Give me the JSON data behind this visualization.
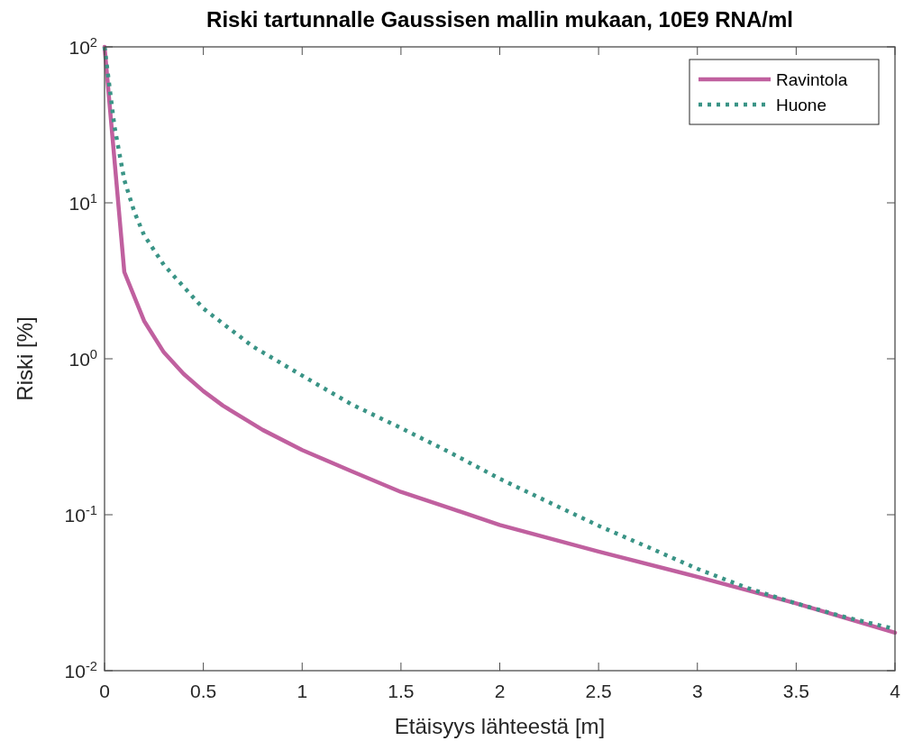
{
  "chart_data": {
    "type": "line",
    "title": "Riski tartunnalle Gaussisen mallin mukaan, 10E9 RNA/ml",
    "xlabel": "Etäisyys lähteestä [m]",
    "ylabel": "Riski [%]",
    "log": "y",
    "grid": false,
    "legend": "top right",
    "xlim": [
      0,
      4
    ],
    "xticks": [
      0,
      0.5,
      1,
      1.5,
      2,
      2.5,
      3,
      3.5,
      4
    ],
    "ylim": [
      0.01,
      100
    ],
    "yticks": [
      {
        "value": 0.01,
        "label": "10$^{-2}$"
      },
      {
        "value": 0.1,
        "label": "10$^{-1}$"
      },
      {
        "value": 1,
        "label": "10$^{0}$"
      },
      {
        "value": 10,
        "label": "10$^{1}$"
      },
      {
        "value": 100,
        "label": "10$^{2}$"
      }
    ],
    "series": [
      {
        "name": "Ravintola",
        "color": "#c0609f",
        "line_style": "solid",
        "x": [
          0,
          0.1,
          0.2,
          0.3,
          0.4,
          0.5,
          0.6,
          0.8,
          1,
          1.25,
          1.5,
          1.75,
          2,
          2.5,
          3,
          3.5,
          4
        ],
        "values": [
          100,
          3.6,
          1.75,
          1.1,
          0.8,
          0.62,
          0.5,
          0.35,
          0.26,
          0.19,
          0.14,
          0.11,
          0.086,
          0.058,
          0.04,
          0.027,
          0.0175
        ]
      },
      {
        "name": "Huone",
        "color": "#3a9486",
        "line_style": "dotted",
        "x": [
          0,
          0.05,
          0.1,
          0.15,
          0.2,
          0.3,
          0.5,
          0.75,
          1,
          1.25,
          1.5,
          1.75,
          2,
          2.25,
          2.5,
          2.75,
          3,
          3.25,
          3.5,
          3.75,
          4
        ],
        "values": [
          100,
          31,
          14,
          8.8,
          6.2,
          4,
          2.1,
          1.2,
          0.78,
          0.51,
          0.36,
          0.25,
          0.17,
          0.12,
          0.085,
          0.062,
          0.045,
          0.034,
          0.027,
          0.022,
          0.0185
        ]
      }
    ]
  }
}
